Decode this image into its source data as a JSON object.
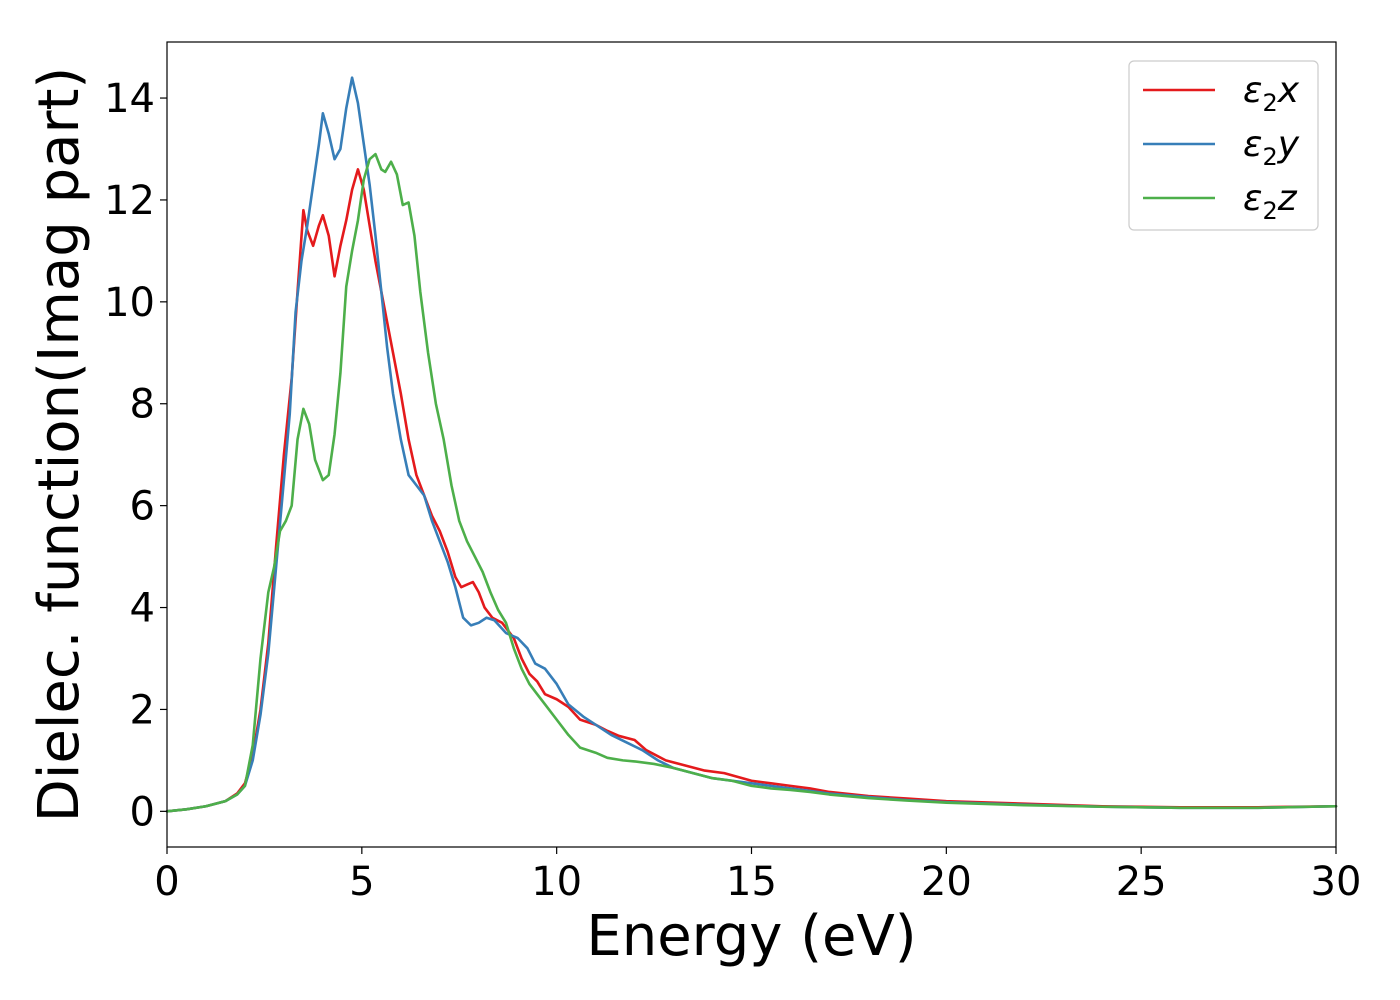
{
  "chart_data": {
    "type": "line",
    "title": "",
    "xlabel": "Energy (eV)",
    "ylabel": "Dielec. function(Imag part)",
    "xlim": [
      0,
      30
    ],
    "ylim": [
      -0.7,
      15.1
    ],
    "xticks": [
      0,
      5,
      10,
      15,
      20,
      25,
      30
    ],
    "xtick_labels": [
      "0",
      "5",
      "10",
      "15",
      "20",
      "25",
      "30"
    ],
    "yticks": [
      0,
      2,
      4,
      6,
      8,
      10,
      12,
      14
    ],
    "ytick_labels": [
      "0",
      "2",
      "4",
      "6",
      "8",
      "10",
      "12",
      "14"
    ],
    "grid": false,
    "legend_position": "top-right",
    "series": [
      {
        "name": "ε2x",
        "legend_base": "ε",
        "legend_sub": "2",
        "legend_suffix": "x",
        "color": "#e41a1c",
        "points": [
          [
            0,
            0
          ],
          [
            0.5,
            0.04
          ],
          [
            1.0,
            0.1
          ],
          [
            1.5,
            0.2
          ],
          [
            1.8,
            0.35
          ],
          [
            2.0,
            0.55
          ],
          [
            2.2,
            1.1
          ],
          [
            2.4,
            2.0
          ],
          [
            2.6,
            3.3
          ],
          [
            2.8,
            5.2
          ],
          [
            3.0,
            7.0
          ],
          [
            3.2,
            8.5
          ],
          [
            3.35,
            10.2
          ],
          [
            3.5,
            11.8
          ],
          [
            3.6,
            11.4
          ],
          [
            3.75,
            11.1
          ],
          [
            3.9,
            11.5
          ],
          [
            4.0,
            11.7
          ],
          [
            4.15,
            11.3
          ],
          [
            4.3,
            10.5
          ],
          [
            4.45,
            11.1
          ],
          [
            4.6,
            11.6
          ],
          [
            4.75,
            12.2
          ],
          [
            4.9,
            12.6
          ],
          [
            5.05,
            12.2
          ],
          [
            5.2,
            11.5
          ],
          [
            5.35,
            10.8
          ],
          [
            5.5,
            10.2
          ],
          [
            5.65,
            9.6
          ],
          [
            5.8,
            9.0
          ],
          [
            6.0,
            8.2
          ],
          [
            6.2,
            7.3
          ],
          [
            6.4,
            6.6
          ],
          [
            6.6,
            6.2
          ],
          [
            6.8,
            5.8
          ],
          [
            7.0,
            5.5
          ],
          [
            7.2,
            5.1
          ],
          [
            7.4,
            4.6
          ],
          [
            7.55,
            4.4
          ],
          [
            7.7,
            4.45
          ],
          [
            7.85,
            4.5
          ],
          [
            8.0,
            4.3
          ],
          [
            8.15,
            4.0
          ],
          [
            8.35,
            3.8
          ],
          [
            8.6,
            3.7
          ],
          [
            8.9,
            3.4
          ],
          [
            9.1,
            3.0
          ],
          [
            9.3,
            2.7
          ],
          [
            9.5,
            2.55
          ],
          [
            9.7,
            2.3
          ],
          [
            10.0,
            2.2
          ],
          [
            10.3,
            2.05
          ],
          [
            10.6,
            1.8
          ],
          [
            11.0,
            1.7
          ],
          [
            11.3,
            1.58
          ],
          [
            11.6,
            1.48
          ],
          [
            12.0,
            1.4
          ],
          [
            12.3,
            1.2
          ],
          [
            12.8,
            1.0
          ],
          [
            13.3,
            0.9
          ],
          [
            13.8,
            0.8
          ],
          [
            14.3,
            0.75
          ],
          [
            15.0,
            0.6
          ],
          [
            15.5,
            0.55
          ],
          [
            16.0,
            0.5
          ],
          [
            16.5,
            0.45
          ],
          [
            17.0,
            0.38
          ],
          [
            18.0,
            0.3
          ],
          [
            19.0,
            0.25
          ],
          [
            20.0,
            0.2
          ],
          [
            22.0,
            0.15
          ],
          [
            24.0,
            0.1
          ],
          [
            26.0,
            0.08
          ],
          [
            28.0,
            0.08
          ],
          [
            30.0,
            0.1
          ]
        ]
      },
      {
        "name": "ε2y",
        "legend_base": "ε",
        "legend_sub": "2",
        "legend_suffix": "y",
        "color": "#377eb8",
        "points": [
          [
            0,
            0
          ],
          [
            0.5,
            0.04
          ],
          [
            1.0,
            0.1
          ],
          [
            1.5,
            0.2
          ],
          [
            1.8,
            0.33
          ],
          [
            2.0,
            0.5
          ],
          [
            2.2,
            1.0
          ],
          [
            2.4,
            1.9
          ],
          [
            2.6,
            3.1
          ],
          [
            2.8,
            4.8
          ],
          [
            3.0,
            6.5
          ],
          [
            3.15,
            7.8
          ],
          [
            3.3,
            9.8
          ],
          [
            3.45,
            10.8
          ],
          [
            3.6,
            11.5
          ],
          [
            3.75,
            12.3
          ],
          [
            3.9,
            13.1
          ],
          [
            4.0,
            13.7
          ],
          [
            4.15,
            13.3
          ],
          [
            4.3,
            12.8
          ],
          [
            4.45,
            13.0
          ],
          [
            4.6,
            13.8
          ],
          [
            4.75,
            14.4
          ],
          [
            4.9,
            13.9
          ],
          [
            5.05,
            13.1
          ],
          [
            5.2,
            12.3
          ],
          [
            5.35,
            11.3
          ],
          [
            5.5,
            10.2
          ],
          [
            5.65,
            9.1
          ],
          [
            5.8,
            8.2
          ],
          [
            6.0,
            7.3
          ],
          [
            6.2,
            6.6
          ],
          [
            6.4,
            6.4
          ],
          [
            6.6,
            6.2
          ],
          [
            6.8,
            5.7
          ],
          [
            7.0,
            5.3
          ],
          [
            7.2,
            4.9
          ],
          [
            7.4,
            4.4
          ],
          [
            7.6,
            3.8
          ],
          [
            7.8,
            3.65
          ],
          [
            8.0,
            3.7
          ],
          [
            8.2,
            3.8
          ],
          [
            8.4,
            3.75
          ],
          [
            8.7,
            3.5
          ],
          [
            9.0,
            3.4
          ],
          [
            9.25,
            3.2
          ],
          [
            9.45,
            2.9
          ],
          [
            9.7,
            2.8
          ],
          [
            10.0,
            2.5
          ],
          [
            10.3,
            2.1
          ],
          [
            10.7,
            1.85
          ],
          [
            11.0,
            1.7
          ],
          [
            11.4,
            1.5
          ],
          [
            11.8,
            1.35
          ],
          [
            12.2,
            1.2
          ],
          [
            12.6,
            1.0
          ],
          [
            13.0,
            0.85
          ],
          [
            13.5,
            0.75
          ],
          [
            14.0,
            0.65
          ],
          [
            15.0,
            0.55
          ],
          [
            15.5,
            0.5
          ],
          [
            16.0,
            0.45
          ],
          [
            16.5,
            0.4
          ],
          [
            17.0,
            0.35
          ],
          [
            18.0,
            0.28
          ],
          [
            19.0,
            0.22
          ],
          [
            20.0,
            0.18
          ],
          [
            22.0,
            0.13
          ],
          [
            24.0,
            0.09
          ],
          [
            26.0,
            0.07
          ],
          [
            28.0,
            0.07
          ],
          [
            30.0,
            0.1
          ]
        ]
      },
      {
        "name": "ε2z",
        "legend_base": "ε",
        "legend_sub": "2",
        "legend_suffix": "z",
        "color": "#4daf4a",
        "points": [
          [
            0,
            0
          ],
          [
            0.5,
            0.04
          ],
          [
            1.0,
            0.1
          ],
          [
            1.5,
            0.2
          ],
          [
            1.8,
            0.33
          ],
          [
            2.0,
            0.5
          ],
          [
            2.2,
            1.3
          ],
          [
            2.4,
            3.0
          ],
          [
            2.6,
            4.3
          ],
          [
            2.75,
            4.8
          ],
          [
            2.9,
            5.5
          ],
          [
            3.05,
            5.7
          ],
          [
            3.2,
            6.0
          ],
          [
            3.35,
            7.3
          ],
          [
            3.5,
            7.9
          ],
          [
            3.65,
            7.6
          ],
          [
            3.8,
            6.9
          ],
          [
            4.0,
            6.5
          ],
          [
            4.15,
            6.6
          ],
          [
            4.3,
            7.4
          ],
          [
            4.45,
            8.6
          ],
          [
            4.6,
            10.3
          ],
          [
            4.75,
            11.0
          ],
          [
            4.9,
            11.6
          ],
          [
            5.05,
            12.4
          ],
          [
            5.2,
            12.8
          ],
          [
            5.35,
            12.9
          ],
          [
            5.5,
            12.6
          ],
          [
            5.6,
            12.55
          ],
          [
            5.75,
            12.75
          ],
          [
            5.9,
            12.5
          ],
          [
            6.05,
            11.9
          ],
          [
            6.2,
            11.95
          ],
          [
            6.35,
            11.3
          ],
          [
            6.5,
            10.2
          ],
          [
            6.7,
            9.0
          ],
          [
            6.9,
            8.0
          ],
          [
            7.1,
            7.3
          ],
          [
            7.3,
            6.4
          ],
          [
            7.5,
            5.7
          ],
          [
            7.7,
            5.3
          ],
          [
            7.9,
            5.0
          ],
          [
            8.1,
            4.7
          ],
          [
            8.3,
            4.3
          ],
          [
            8.5,
            3.95
          ],
          [
            8.7,
            3.7
          ],
          [
            8.9,
            3.2
          ],
          [
            9.1,
            2.8
          ],
          [
            9.3,
            2.5
          ],
          [
            9.5,
            2.3
          ],
          [
            9.7,
            2.1
          ],
          [
            10.0,
            1.8
          ],
          [
            10.3,
            1.5
          ],
          [
            10.6,
            1.25
          ],
          [
            11.0,
            1.15
          ],
          [
            11.3,
            1.05
          ],
          [
            11.7,
            1.0
          ],
          [
            12.0,
            0.98
          ],
          [
            12.5,
            0.93
          ],
          [
            13.0,
            0.85
          ],
          [
            13.5,
            0.75
          ],
          [
            14.0,
            0.65
          ],
          [
            14.5,
            0.6
          ],
          [
            15.0,
            0.5
          ],
          [
            15.5,
            0.45
          ],
          [
            16.0,
            0.42
          ],
          [
            16.5,
            0.38
          ],
          [
            17.0,
            0.33
          ],
          [
            18.0,
            0.26
          ],
          [
            19.0,
            0.21
          ],
          [
            20.0,
            0.17
          ],
          [
            22.0,
            0.12
          ],
          [
            24.0,
            0.09
          ],
          [
            26.0,
            0.07
          ],
          [
            28.0,
            0.07
          ],
          [
            30.0,
            0.1
          ]
        ]
      }
    ]
  }
}
